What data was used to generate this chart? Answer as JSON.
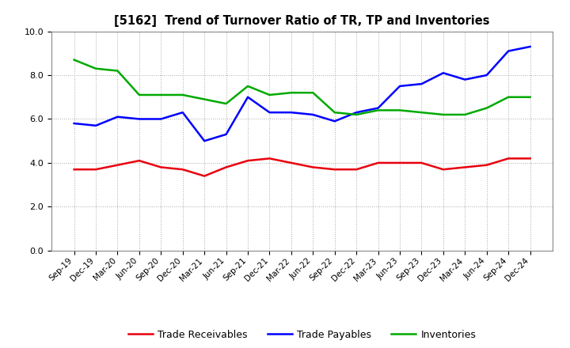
{
  "title": "[5162]  Trend of Turnover Ratio of TR, TP and Inventories",
  "x_labels": [
    "Sep-19",
    "Dec-19",
    "Mar-20",
    "Jun-20",
    "Sep-20",
    "Dec-20",
    "Mar-21",
    "Jun-21",
    "Sep-21",
    "Dec-21",
    "Mar-22",
    "Jun-22",
    "Sep-22",
    "Dec-22",
    "Mar-23",
    "Jun-23",
    "Sep-23",
    "Dec-23",
    "Mar-24",
    "Jun-24",
    "Sep-24",
    "Dec-24"
  ],
  "trade_receivables": [
    3.7,
    3.7,
    3.9,
    4.1,
    3.8,
    3.7,
    3.4,
    3.8,
    4.1,
    4.2,
    4.0,
    3.8,
    3.7,
    3.7,
    4.0,
    4.0,
    4.0,
    3.7,
    3.8,
    3.9,
    4.2,
    4.2
  ],
  "trade_payables": [
    5.8,
    5.7,
    6.1,
    6.0,
    6.0,
    6.3,
    5.0,
    5.3,
    7.0,
    6.3,
    6.3,
    6.2,
    5.9,
    6.3,
    6.5,
    7.5,
    7.6,
    8.1,
    7.8,
    8.0,
    9.1,
    9.3
  ],
  "inventories": [
    8.7,
    8.3,
    8.2,
    7.1,
    7.1,
    7.1,
    6.9,
    6.7,
    7.5,
    7.1,
    7.2,
    7.2,
    6.3,
    6.2,
    6.4,
    6.4,
    6.3,
    6.2,
    6.2,
    6.5,
    7.0,
    7.0
  ],
  "tr_color": "#e8000d",
  "tp_color": "#0000ff",
  "inv_color": "#00aa00",
  "ylim": [
    0.0,
    10.0
  ],
  "yticks": [
    0.0,
    2.0,
    4.0,
    6.0,
    8.0,
    10.0
  ],
  "line_width": 1.8,
  "legend_labels": [
    "Trade Receivables",
    "Trade Payables",
    "Inventories"
  ],
  "bg_color": "#ffffff",
  "grid_color": "#aaaaaa"
}
